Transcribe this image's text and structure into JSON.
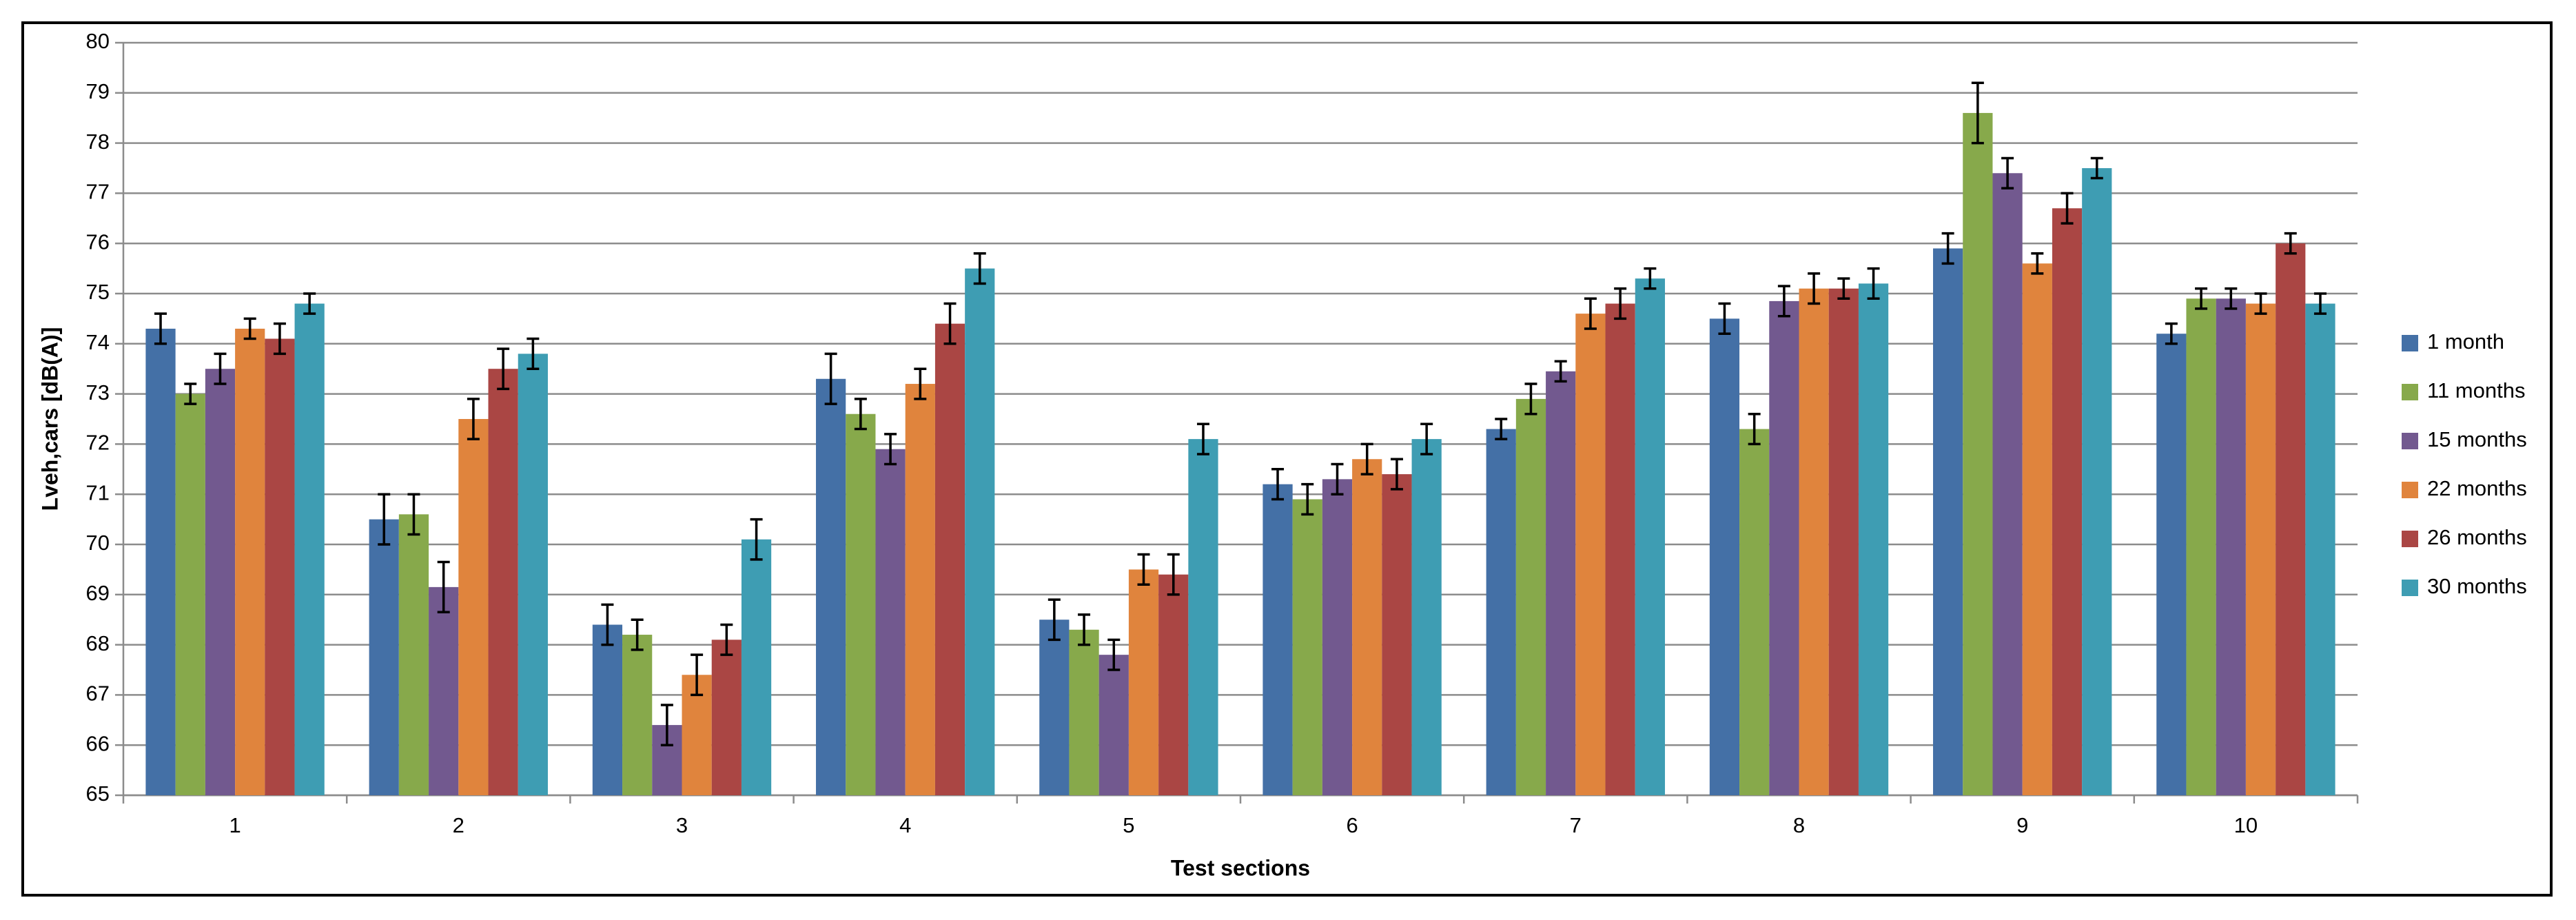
{
  "chart_data": {
    "type": "bar",
    "x_label": "Test sections",
    "y_label": "Lveh,cars [dB(A)]",
    "categories": [
      "1",
      "2",
      "3",
      "4",
      "5",
      "6",
      "7",
      "8",
      "9",
      "10"
    ],
    "ylim": [
      65,
      80
    ],
    "yticks": [
      65,
      66,
      67,
      68,
      69,
      70,
      71,
      72,
      73,
      74,
      75,
      76,
      77,
      78,
      79,
      80
    ],
    "grid": true,
    "legend": "right",
    "series": [
      {
        "name": "1 month",
        "color": "#4470a6",
        "values": [
          74.3,
          70.5,
          68.4,
          73.3,
          68.5,
          71.2,
          72.3,
          74.5,
          75.9,
          74.2
        ],
        "errors": [
          0.3,
          0.5,
          0.4,
          0.5,
          0.4,
          0.3,
          0.2,
          0.3,
          0.3,
          0.2
        ]
      },
      {
        "name": "11 months",
        "color": "#87a94b",
        "values": [
          73.0,
          70.6,
          68.2,
          72.6,
          68.3,
          70.9,
          72.9,
          72.3,
          78.6,
          74.9
        ],
        "errors": [
          0.2,
          0.4,
          0.3,
          0.3,
          0.3,
          0.3,
          0.3,
          0.3,
          0.6,
          0.2
        ]
      },
      {
        "name": "15 months",
        "color": "#72598f",
        "values": [
          73.5,
          69.15,
          66.4,
          71.9,
          67.8,
          71.3,
          73.45,
          74.85,
          77.4,
          74.9
        ],
        "errors": [
          0.3,
          0.5,
          0.4,
          0.3,
          0.3,
          0.3,
          0.2,
          0.3,
          0.3,
          0.2
        ]
      },
      {
        "name": "22 months",
        "color": "#e0843d",
        "values": [
          74.3,
          72.5,
          67.4,
          73.2,
          69.5,
          71.7,
          74.6,
          75.1,
          75.6,
          74.8
        ],
        "errors": [
          0.2,
          0.4,
          0.4,
          0.3,
          0.3,
          0.3,
          0.3,
          0.3,
          0.2,
          0.2
        ]
      },
      {
        "name": "26 months",
        "color": "#aa4644",
        "values": [
          74.1,
          73.5,
          68.1,
          74.4,
          69.4,
          71.4,
          74.8,
          75.1,
          76.7,
          76.0
        ],
        "errors": [
          0.3,
          0.4,
          0.3,
          0.4,
          0.4,
          0.3,
          0.3,
          0.2,
          0.3,
          0.2
        ]
      },
      {
        "name": "30 months",
        "color": "#3e9db3",
        "values": [
          74.8,
          73.8,
          70.1,
          75.5,
          72.1,
          72.1,
          75.3,
          75.2,
          77.5,
          74.8
        ],
        "errors": [
          0.2,
          0.3,
          0.4,
          0.3,
          0.3,
          0.3,
          0.2,
          0.3,
          0.2,
          0.2
        ]
      }
    ]
  }
}
